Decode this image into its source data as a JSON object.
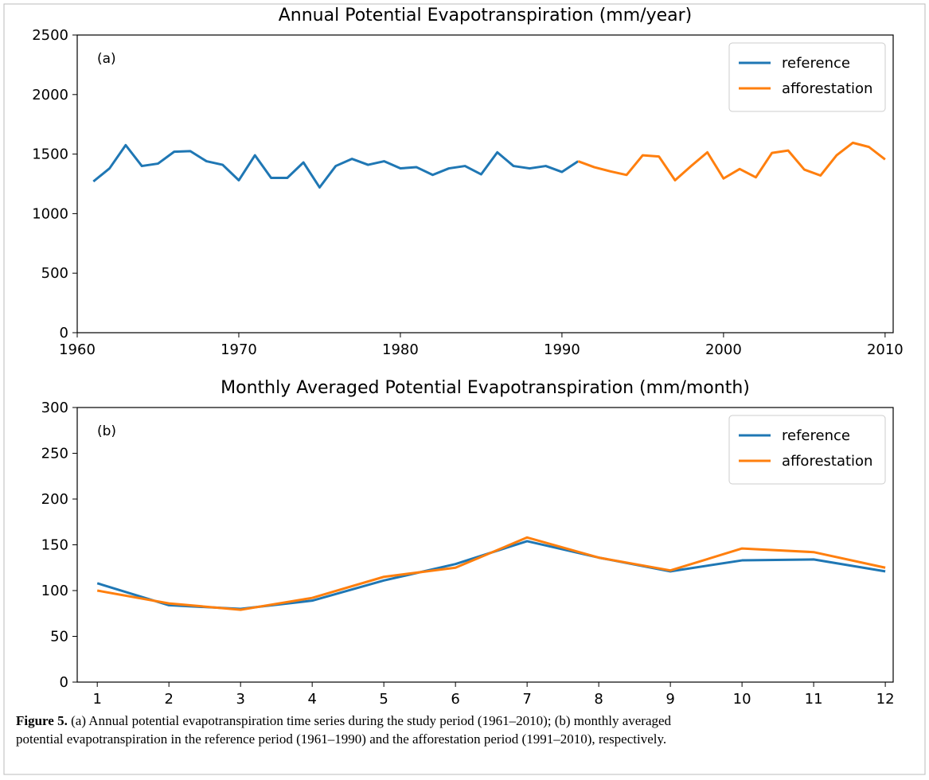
{
  "chart_data": [
    {
      "type": "line",
      "title": "Annual Potential Evapotranspiration (mm/year)",
      "annotation": "(a)",
      "x": [
        1961,
        1962,
        1963,
        1964,
        1965,
        1966,
        1967,
        1968,
        1969,
        1970,
        1971,
        1972,
        1973,
        1974,
        1975,
        1976,
        1977,
        1978,
        1979,
        1980,
        1981,
        1982,
        1983,
        1984,
        1985,
        1986,
        1987,
        1988,
        1989,
        1990,
        1991,
        1992,
        1993,
        1994,
        1995,
        1996,
        1997,
        1998,
        1999,
        2000,
        2001,
        2002,
        2003,
        2004,
        2005,
        2006,
        2007,
        2008,
        2009,
        2010
      ],
      "series": [
        {
          "name": "reference",
          "color": "#1f77b4",
          "values": [
            1270,
            1380,
            1575,
            1400,
            1420,
            1520,
            1525,
            1440,
            1410,
            1280,
            1490,
            1300,
            1300,
            1430,
            1220,
            1400,
            1460,
            1410,
            1440,
            1380,
            1390,
            1325,
            1380,
            1400,
            1330,
            1515,
            1400,
            1380,
            1400,
            1350,
            1440,
            null,
            null,
            null,
            null,
            null,
            null,
            null,
            null,
            null,
            null,
            null,
            null,
            null,
            null,
            null,
            null,
            null,
            null,
            null
          ]
        },
        {
          "name": "afforestation",
          "color": "#ff7f0e",
          "values": [
            null,
            null,
            null,
            null,
            null,
            null,
            null,
            null,
            null,
            null,
            null,
            null,
            null,
            null,
            null,
            null,
            null,
            null,
            null,
            null,
            null,
            null,
            null,
            null,
            null,
            null,
            null,
            null,
            null,
            null,
            1440,
            1390,
            1355,
            1325,
            1490,
            1480,
            1280,
            1400,
            1515,
            1295,
            1375,
            1305,
            1510,
            1530,
            1370,
            1320,
            1490,
            1595,
            1560,
            1455
          ]
        }
      ],
      "xlim": [
        1960,
        2010.5
      ],
      "xticks": [
        1960,
        1970,
        1980,
        1990,
        2000,
        2010
      ],
      "ylim": [
        0,
        2500
      ],
      "yticks": [
        0,
        500,
        1000,
        1500,
        2000,
        2500
      ],
      "grid": false,
      "legend": "upper right"
    },
    {
      "type": "line",
      "title": "Monthly Averaged Potential Evapotranspiration (mm/month)",
      "annotation": "(b)",
      "x": [
        1,
        2,
        3,
        4,
        5,
        6,
        7,
        8,
        9,
        10,
        11,
        12
      ],
      "series": [
        {
          "name": "reference",
          "color": "#1f77b4",
          "values": [
            108,
            84,
            80,
            89,
            111,
            129,
            154,
            136,
            121,
            133,
            134,
            121
          ]
        },
        {
          "name": "afforestation",
          "color": "#ff7f0e",
          "values": [
            100,
            86,
            79,
            92,
            115,
            125,
            158,
            136,
            122,
            146,
            142,
            125
          ]
        }
      ],
      "xlim": [
        0.72,
        12.11
      ],
      "xticks": [
        1,
        2,
        3,
        4,
        5,
        6,
        7,
        8,
        9,
        10,
        11,
        12
      ],
      "ylim": [
        0,
        300
      ],
      "yticks": [
        0,
        50,
        100,
        150,
        200,
        250,
        300
      ],
      "grid": false,
      "legend": "upper right"
    }
  ],
  "caption": {
    "label": "Figure 5.",
    "text": "(a) Annual potential evapotranspiration time series during the study period (1961–2010); (b) monthly averaged potential evapotranspiration in the reference period (1961–1990) and the afforestation period (1991–2010), respectively."
  }
}
